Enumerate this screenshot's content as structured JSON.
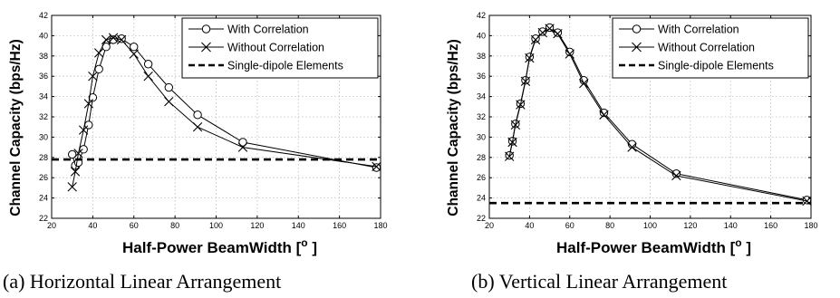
{
  "chart_data": [
    {
      "type": "line",
      "caption": "(a) Horizontal Linear Arrangement",
      "xlabel": "Half-Power BeamWidth [",
      "xlabel_sup": "o",
      "xlabel_end": " ]",
      "ylabel": "Channel Capacity (bps/Hz)",
      "xlim": [
        20,
        180
      ],
      "ylim": [
        22,
        42
      ],
      "xticks": [
        20,
        40,
        60,
        80,
        100,
        120,
        140,
        160,
        180
      ],
      "yticks": [
        22,
        24,
        26,
        28,
        30,
        32,
        34,
        36,
        38,
        40,
        42
      ],
      "grid": true,
      "legend_position": "top-right",
      "series": [
        {
          "name": "With Correlation",
          "marker": "circle",
          "x": [
            30,
            31.5,
            33,
            35.5,
            38,
            40,
            43,
            46.5,
            50,
            54,
            60,
            67,
            77,
            91,
            113,
            178
          ],
          "y": [
            28.3,
            27.2,
            27.5,
            28.8,
            31.2,
            33.9,
            36.7,
            38.9,
            39.6,
            39.7,
            38.9,
            37.2,
            34.9,
            32.2,
            29.5,
            27.0
          ]
        },
        {
          "name": "Without Correlation",
          "marker": "x",
          "x": [
            30,
            31.5,
            33,
            35.5,
            38,
            40,
            43,
            46.5,
            50,
            54,
            60,
            67,
            77,
            91,
            113,
            178
          ],
          "y": [
            25.1,
            26.6,
            28.4,
            30.7,
            33.3,
            36.0,
            38.3,
            39.6,
            39.8,
            39.6,
            38.2,
            36.0,
            33.5,
            31.0,
            29.0,
            27.1
          ]
        },
        {
          "name": "Single-dipole Elements",
          "style": "dashed",
          "x": [
            20,
            180
          ],
          "y": [
            27.8,
            27.8
          ]
        }
      ]
    },
    {
      "type": "line",
      "caption": "(b) Vertical Linear Arrangement",
      "xlabel": "Half-Power BeamWidth [",
      "xlabel_sup": "o",
      "xlabel_end": " ]",
      "ylabel": "Channel Capacity (bps/Hz)",
      "xlim": [
        20,
        180
      ],
      "ylim": [
        22,
        42
      ],
      "xticks": [
        20,
        40,
        60,
        80,
        100,
        120,
        140,
        160,
        180
      ],
      "yticks": [
        22,
        24,
        26,
        28,
        30,
        32,
        34,
        36,
        38,
        40,
        42
      ],
      "grid": true,
      "legend_position": "top-right",
      "series": [
        {
          "name": "With Correlation",
          "marker": "circle",
          "x": [
            30,
            31.5,
            33,
            35.5,
            38,
            40,
            43,
            46.5,
            50,
            54,
            60,
            67,
            77,
            91,
            113,
            178
          ],
          "y": [
            28.2,
            29.6,
            31.3,
            33.3,
            35.6,
            37.9,
            39.7,
            40.4,
            40.8,
            40.3,
            38.4,
            35.6,
            32.4,
            29.3,
            26.4,
            23.8
          ]
        },
        {
          "name": "Without Correlation",
          "marker": "x",
          "x": [
            30,
            31.5,
            33,
            35.5,
            38,
            40,
            43,
            46.5,
            50,
            54,
            60,
            67,
            77,
            91,
            113,
            178
          ],
          "y": [
            28.1,
            29.5,
            31.2,
            33.2,
            35.5,
            37.8,
            39.6,
            40.3,
            40.7,
            40.2,
            38.2,
            35.3,
            32.2,
            29.0,
            26.2,
            23.7
          ]
        },
        {
          "name": "Single-dipole Elements",
          "style": "dashed",
          "x": [
            20,
            180
          ],
          "y": [
            23.5,
            23.5
          ]
        }
      ]
    }
  ]
}
